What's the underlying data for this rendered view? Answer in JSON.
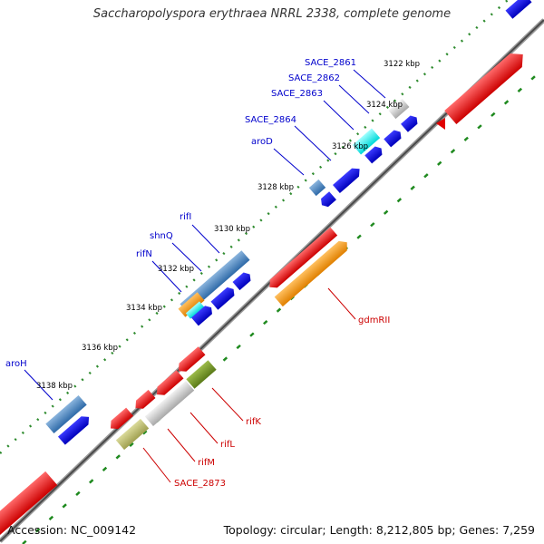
{
  "title": "Saccharopolyspora erythraea NRRL 2338, complete genome",
  "footer": {
    "accession": "Accession: NC_009142",
    "topology": "Topology: circular; Length: 8,212,805 bp; Genes: 7,259"
  },
  "colors": {
    "forward_label": "#0000cc",
    "reverse_label": "#cc0000",
    "tick_label": "#000000"
  },
  "position_ticks": [
    "3122 kbp",
    "3124 kbp",
    "3126 kbp",
    "3128 kbp",
    "3130 kbp",
    "3132 kbp",
    "3134 kbp",
    "3136 kbp",
    "3138 kbp"
  ],
  "forward_gene_labels": [
    "SACE_2861",
    "SACE_2862",
    "SACE_2863",
    "SACE_2864",
    "aroD",
    "rifI",
    "shnQ",
    "rifN",
    "aroH"
  ],
  "reverse_gene_labels": [
    "gdmRII",
    "rifK",
    "rifL",
    "rifM",
    "SACE_2873"
  ]
}
